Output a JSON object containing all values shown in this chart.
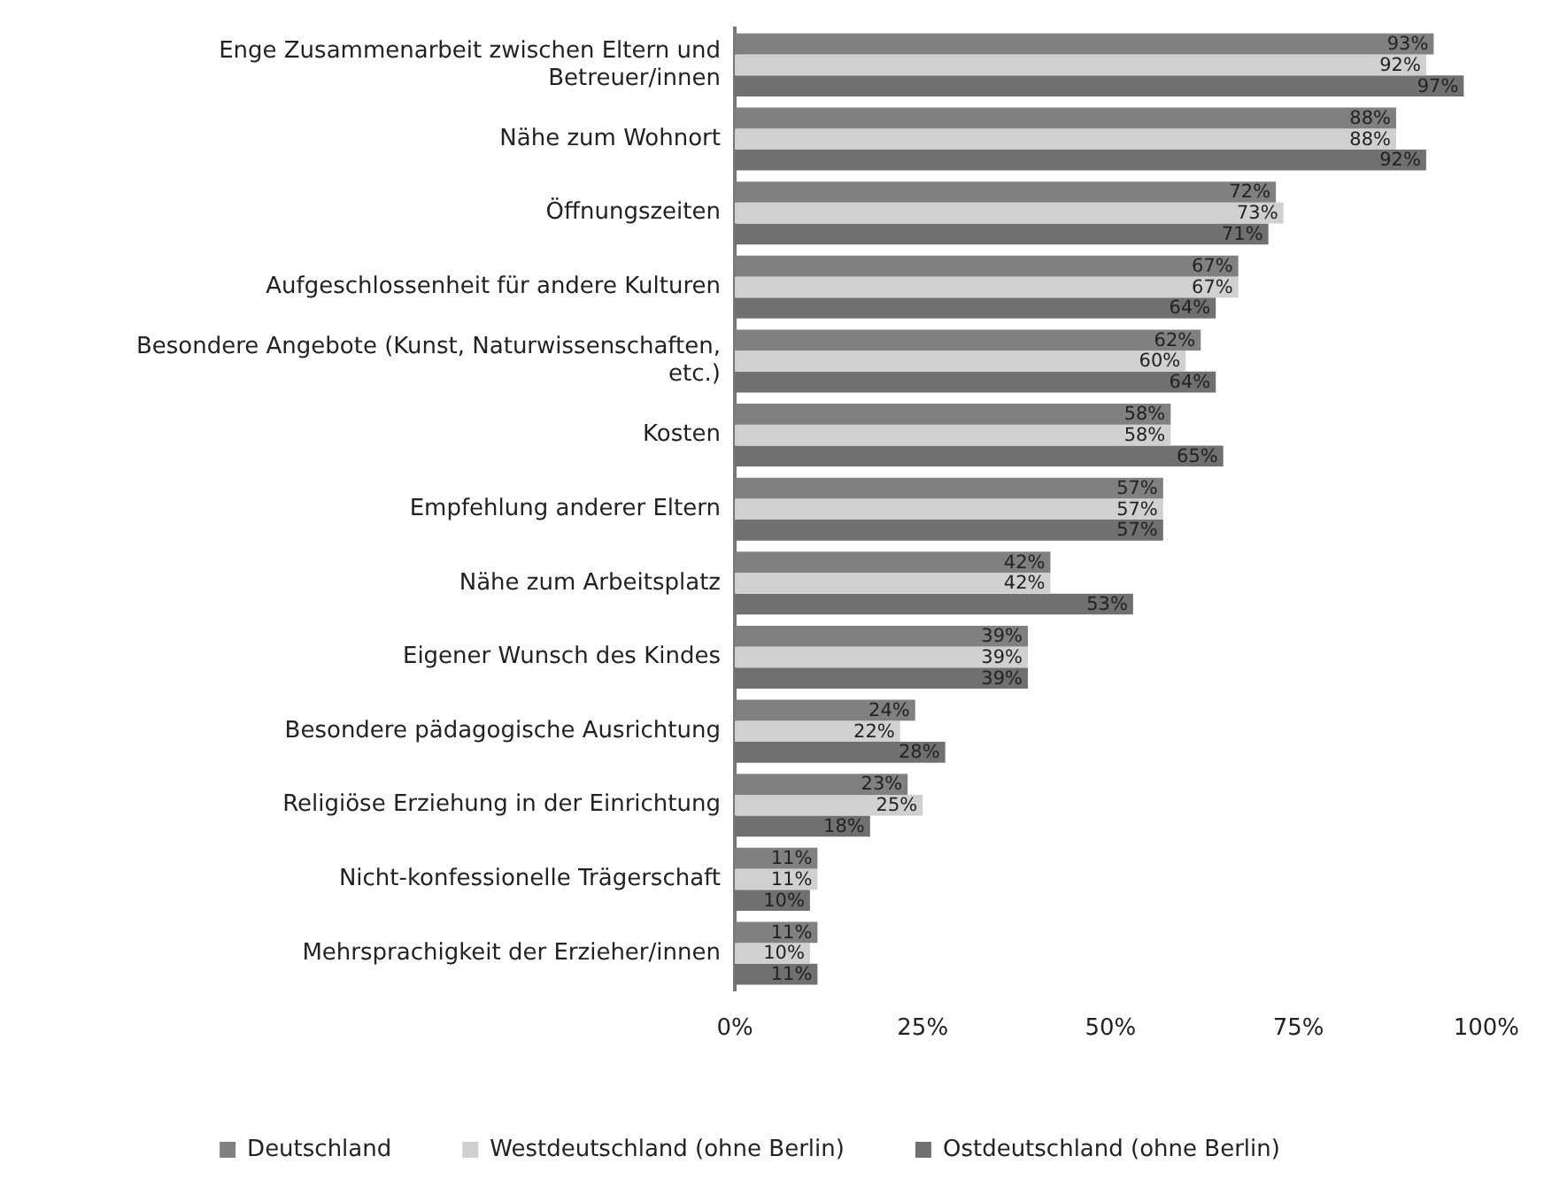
{
  "chart_data": {
    "type": "bar",
    "orientation": "horizontal",
    "categories": [
      "Enge Zusammenarbeit zwischen Eltern und Betreuer/innen",
      "Nähe zum Wohnort",
      "Öffnungszeiten",
      "Aufgeschlossenheit für andere Kulturen",
      "Besondere Angebote (Kunst, Naturwissenschaften, etc.)",
      "Kosten",
      "Empfehlung anderer Eltern",
      "Nähe zum Arbeitsplatz",
      "Eigener Wunsch des Kindes",
      "Besondere pädagogische Ausrichtung",
      "Religiöse Erziehung in der Einrichtung",
      "Nicht-konfessionelle Trägerschaft",
      "Mehrsprachigkeit der Erzieher/innen"
    ],
    "series": [
      {
        "name": "Deutschland",
        "color": "#808080",
        "values": [
          93,
          88,
          72,
          67,
          62,
          58,
          57,
          42,
          39,
          24,
          23,
          11,
          11
        ],
        "value_labels": [
          "93%",
          "88%",
          "72%",
          "67%",
          "62%",
          "58%",
          "57%",
          "42%",
          "39%",
          "24%",
          "23%",
          "11%",
          "11%"
        ]
      },
      {
        "name": "Westdeutschland (ohne Berlin)",
        "color": "#d0d0d0",
        "values": [
          92,
          88,
          73,
          67,
          60,
          58,
          57,
          42,
          39,
          22,
          25,
          11,
          10
        ],
        "value_labels": [
          "92%",
          "88%",
          "73%",
          "67%",
          "60%",
          "58%",
          "57%",
          "42%",
          "39%",
          "22%",
          "25%",
          "11%",
          "10%"
        ]
      },
      {
        "name": "Ostdeutschland (ohne Berlin)",
        "color": "#707070",
        "values": [
          97,
          92,
          71,
          64,
          64,
          65,
          57,
          53,
          39,
          28,
          18,
          10,
          11
        ],
        "value_labels": [
          "97%",
          "92%",
          "71%",
          "64%",
          "64%",
          "65%",
          "57%",
          "53%",
          "39%",
          "28%",
          "18%",
          "10%",
          "11%"
        ]
      }
    ],
    "xlim": [
      0,
      100
    ],
    "xticks": [
      {
        "value": 0,
        "label": "0%"
      },
      {
        "value": 25,
        "label": "25%"
      },
      {
        "value": 50,
        "label": "50%"
      },
      {
        "value": 75,
        "label": "75%"
      },
      {
        "value": 100,
        "label": "100%"
      }
    ],
    "grid": false,
    "legend": "bottom"
  }
}
